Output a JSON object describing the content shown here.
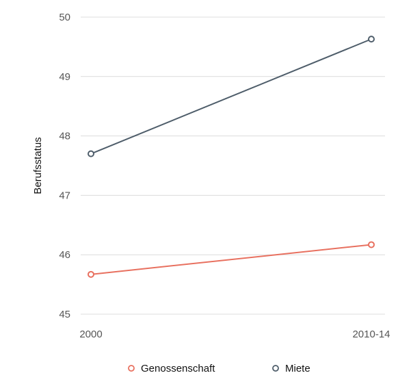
{
  "chart_data": {
    "type": "line",
    "categories": [
      "2000",
      "2010-14"
    ],
    "ylabel": "Berufsstatus",
    "ylim": [
      45,
      50
    ],
    "yticks": [
      45,
      46,
      47,
      48,
      49,
      50
    ],
    "grid": true,
    "legend_position": "bottom",
    "series": [
      {
        "name": "Genossenschaft",
        "color": "#e8705f",
        "values": [
          45.67,
          46.17
        ]
      },
      {
        "name": "Miete",
        "color": "#4e5d6a",
        "values": [
          47.7,
          49.63
        ]
      }
    ]
  }
}
